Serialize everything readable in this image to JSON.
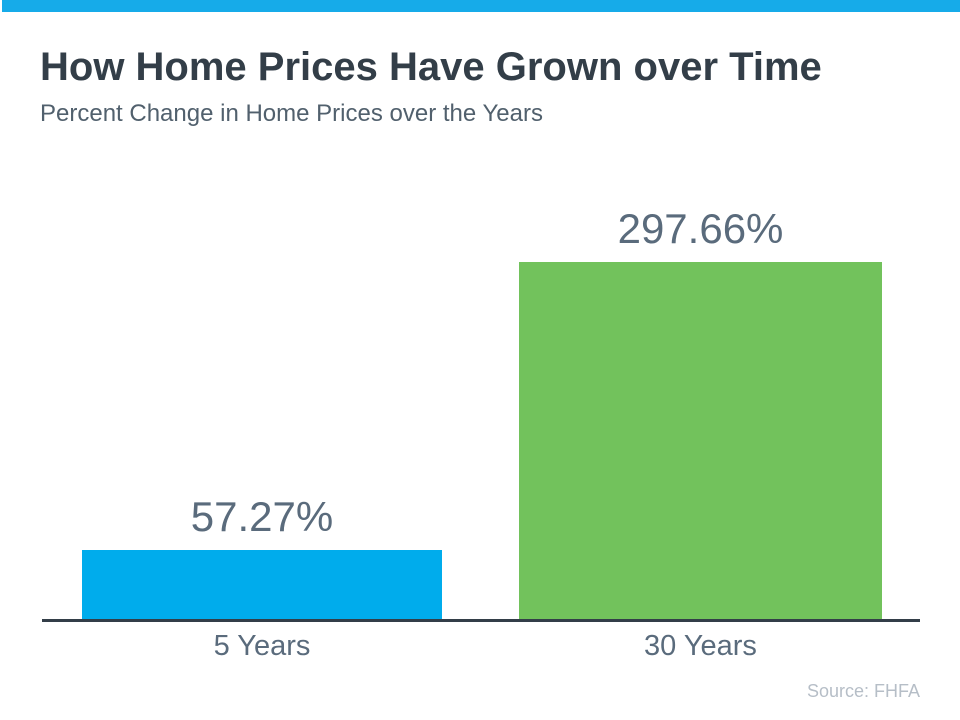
{
  "chart_data": {
    "type": "bar",
    "title": "How Home Prices Have Grown over Time",
    "subtitle": "Percent Change in Home Prices over the Years",
    "categories": [
      "5 Years",
      "30 Years"
    ],
    "values": [
      57.27,
      297.66
    ],
    "value_labels": [
      "57.27%",
      "297.66%"
    ],
    "series_colors": [
      "#00ACEC",
      "#72C25C"
    ],
    "xlabel": "",
    "ylabel": "",
    "ylim": [
      0,
      330
    ],
    "grid": false,
    "legend": false,
    "source": "Source: FHFA"
  },
  "colors": {
    "background": "#FFFFFF",
    "top_bar": "#16ABE9",
    "title": "#333E48",
    "subtitle": "#51606D",
    "value_label": "#5A6B7C",
    "category_label": "#5A6B7C",
    "axis": "#333E48",
    "source": "#B6BEC7"
  }
}
